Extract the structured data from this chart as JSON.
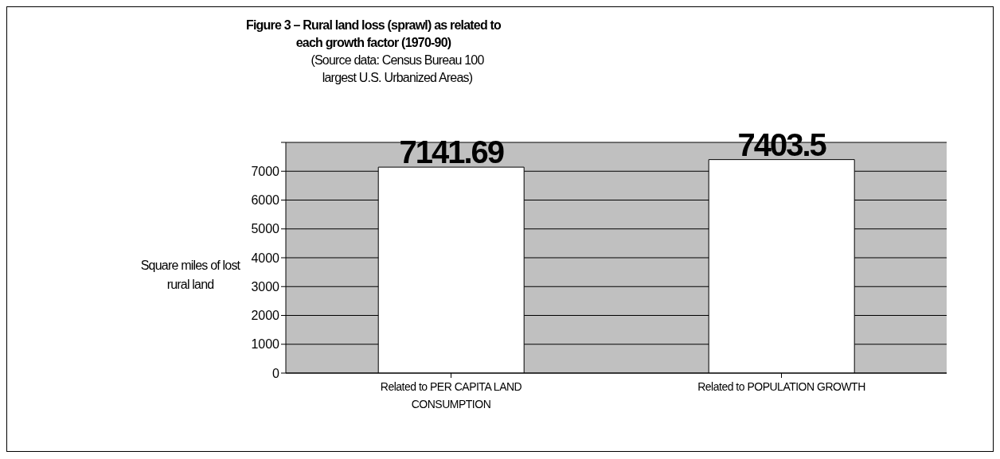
{
  "chart_data": {
    "type": "bar",
    "title": "Figure 3 – Rural land loss (sprawl) as related to each growth factor (1970-90)",
    "subtitle": "(Source data: Census Bureau 100 largest U.S. Urbanized Areas)",
    "ylabel": "Square miles of lost rural land",
    "categories": [
      "Related to PER CAPITA LAND CONSUMPTION",
      "Related to POPULATION GROWTH"
    ],
    "values": [
      7141.69,
      7403.5
    ],
    "color": "#ffffff",
    "ylim": [
      0,
      8000
    ],
    "yticks": [
      0,
      1000,
      2000,
      3000,
      4000,
      5000,
      6000,
      7000,
      {
        "value": 8000,
        "label": null
      }
    ],
    "grid": "y",
    "data_labels": true,
    "legend": false
  }
}
